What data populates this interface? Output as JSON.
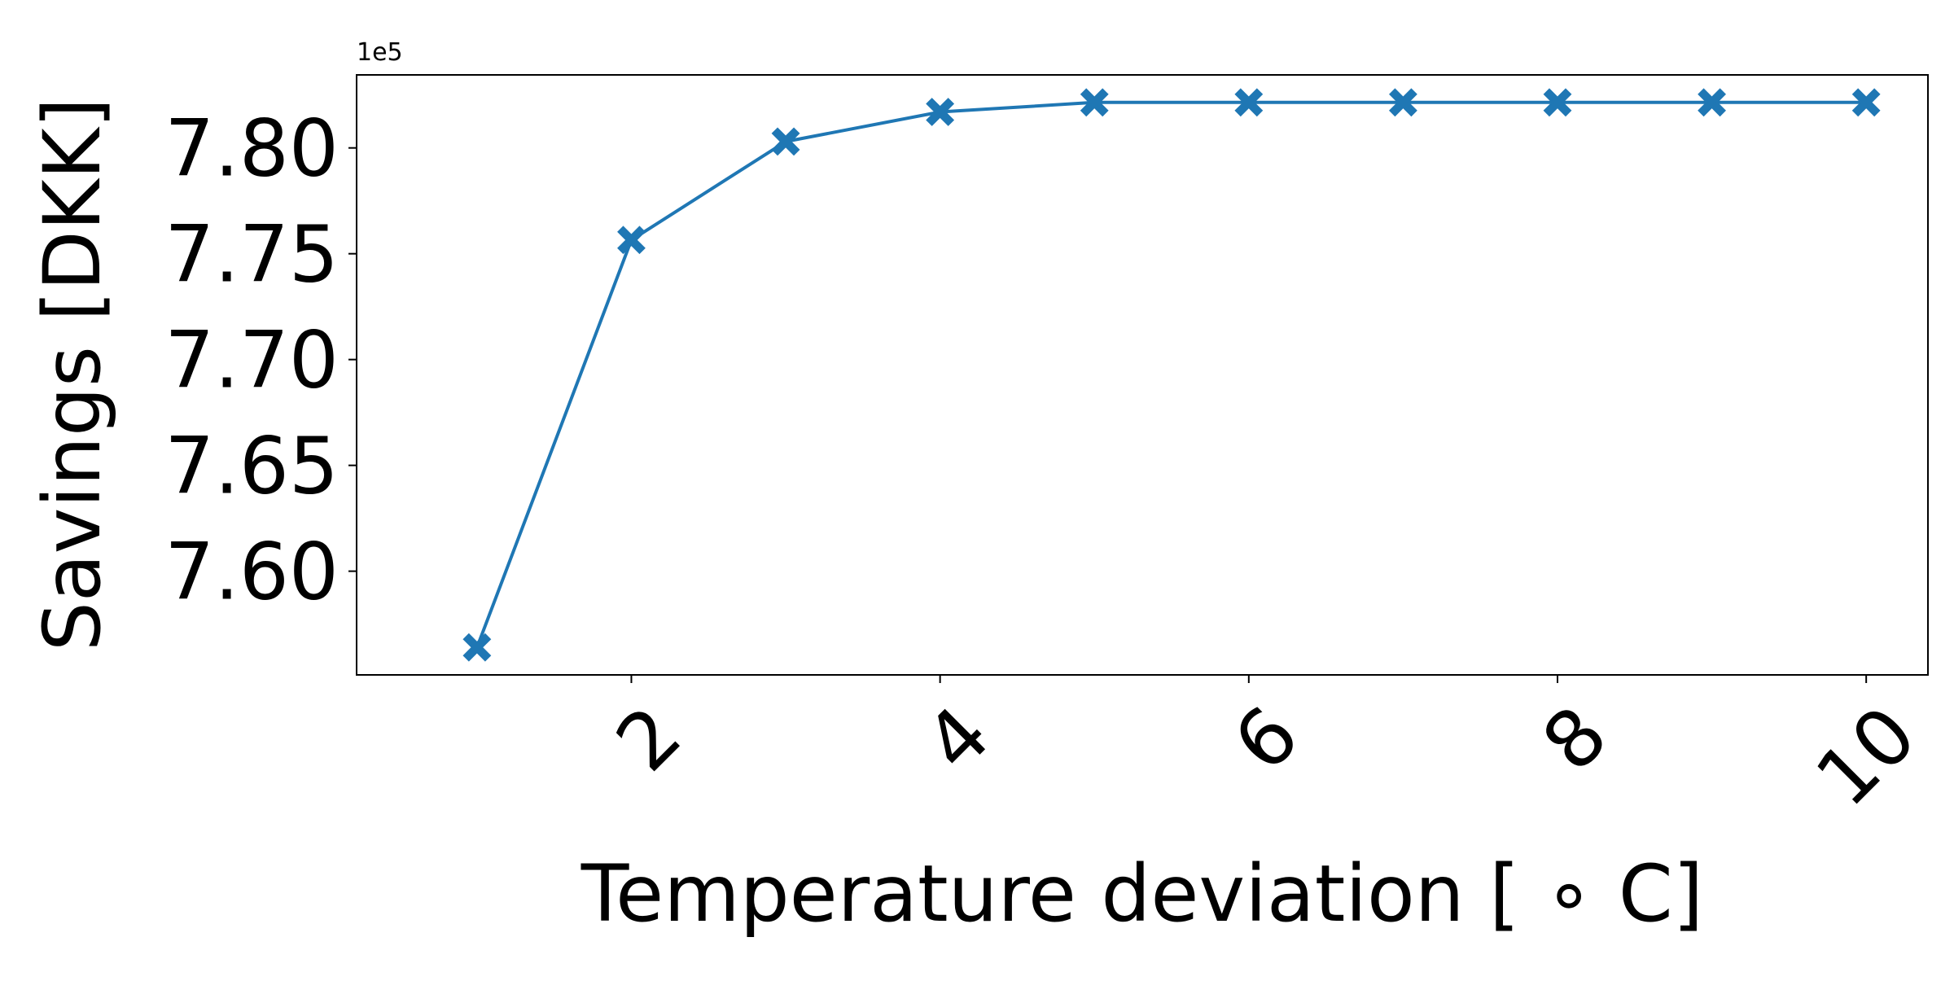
{
  "chart_data": {
    "type": "line",
    "title": "",
    "xlabel": "Temperature deviation [$^\\circ$C]",
    "xlabel_display": "Temperature deviation [ ∘ C]",
    "ylabel": "Savings [DKK]",
    "y_offset_label": "1e5",
    "x": [
      1,
      2,
      3,
      4,
      5,
      6,
      7,
      8,
      9,
      10
    ],
    "series": [
      {
        "values": [
          756400,
          775650,
          780300,
          781700,
          782150,
          782150,
          782150,
          782150,
          782150,
          782150
        ],
        "marker": "X",
        "color": "#1f77b4"
      }
    ],
    "xlim": [
      0.22,
      10.4
    ],
    "ylim": [
      755100,
      783450
    ],
    "xticks": [
      2,
      4,
      6,
      8,
      10
    ],
    "xtick_labels": [
      "2",
      "4",
      "6",
      "8",
      "10"
    ],
    "yticks": [
      760000,
      765000,
      770000,
      775000,
      780000
    ],
    "ytick_labels": [
      "7.60",
      "7.65",
      "7.70",
      "7.75",
      "7.80"
    ],
    "grid": false,
    "legend": "none"
  }
}
